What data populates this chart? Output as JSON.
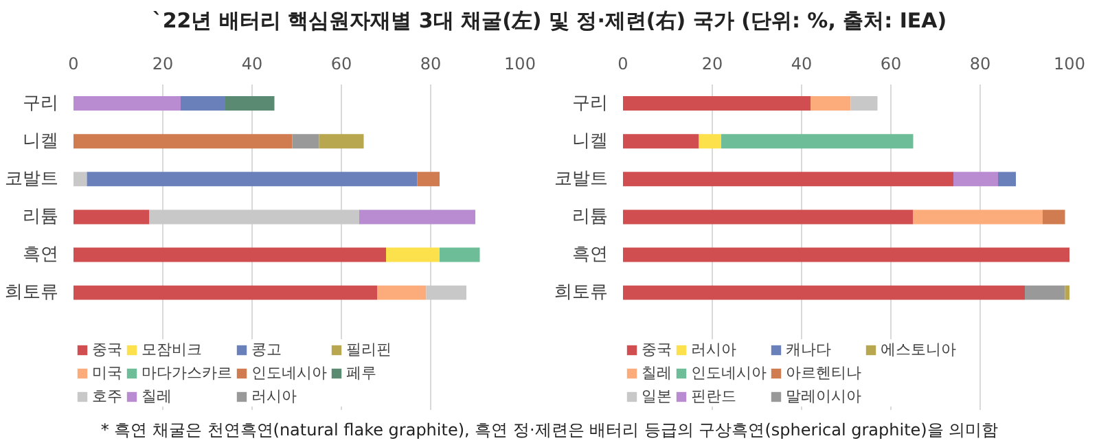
{
  "chart_data": [
    {
      "type": "bar",
      "orientation": "horizontal",
      "stacked": true,
      "title": "`22년 배터리 핵심원자재별 3대 채굴(左) 및 정·제련(右) 국가 (단위: %, 출처: IEA)",
      "categories": [
        "구리",
        "니켈",
        "코발트",
        "리튬",
        "흑연",
        "희토류"
      ],
      "xlim": [
        0,
        100
      ],
      "xticks": [
        0,
        20,
        40,
        60,
        80,
        100
      ],
      "grid": "x",
      "legend": "bottom",
      "series": [
        {
          "name": "중국",
          "color": "#d04e4f",
          "values": [
            null,
            null,
            null,
            17,
            70,
            68
          ]
        },
        {
          "name": "미국",
          "color": "#fcab7a",
          "values": [
            null,
            null,
            null,
            null,
            null,
            11
          ]
        },
        {
          "name": "호주",
          "color": "#c8c8c8",
          "values": [
            null,
            null,
            3,
            47,
            null,
            9
          ]
        },
        {
          "name": "모잠비크",
          "color": "#fce14c",
          "values": [
            null,
            null,
            null,
            null,
            12,
            null
          ]
        },
        {
          "name": "마다가스카르",
          "color": "#6cbd98",
          "values": [
            null,
            null,
            null,
            null,
            9,
            null
          ]
        },
        {
          "name": "칠레",
          "color": "#b98bd0",
          "values": [
            24,
            null,
            null,
            26,
            null,
            null
          ]
        },
        {
          "name": "콩고",
          "color": "#6a80bb",
          "values": [
            10,
            null,
            74,
            null,
            null,
            null
          ]
        },
        {
          "name": "인도네시아",
          "color": "#d07c50",
          "values": [
            null,
            49,
            5,
            null,
            null,
            null
          ]
        },
        {
          "name": "러시아",
          "color": "#999999",
          "values": [
            null,
            6,
            null,
            null,
            null,
            null
          ]
        },
        {
          "name": "필리핀",
          "color": "#b8a74e",
          "values": [
            null,
            10,
            null,
            null,
            null,
            null
          ]
        },
        {
          "name": "페루",
          "color": "#5a8a72",
          "values": [
            11,
            null,
            null,
            null,
            null,
            null
          ]
        }
      ]
    },
    {
      "type": "bar",
      "orientation": "horizontal",
      "stacked": true,
      "categories": [
        "구리",
        "니켈",
        "코발트",
        "리튬",
        "흑연",
        "희토류"
      ],
      "xlim": [
        0,
        100
      ],
      "xticks": [
        0,
        20,
        40,
        60,
        80,
        100
      ],
      "grid": "x",
      "legend": "bottom",
      "annotations": [
        "* 흑연 채굴은 천연흑연(natural flake graphite), 흑연 정·제련은 배터리 등급의 구상흑연(spherical graphite)을 의미함"
      ],
      "series": [
        {
          "name": "중국",
          "color": "#d04e4f",
          "values": [
            42,
            17,
            74,
            65,
            100,
            90
          ]
        },
        {
          "name": "칠레",
          "color": "#fcab7a",
          "values": [
            9,
            null,
            null,
            29,
            null,
            null
          ]
        },
        {
          "name": "일본",
          "color": "#c8c8c8",
          "values": [
            6,
            null,
            null,
            null,
            null,
            null
          ]
        },
        {
          "name": "러시아",
          "color": "#fce14c",
          "values": [
            null,
            5,
            null,
            null,
            null,
            null
          ]
        },
        {
          "name": "인도네시아",
          "color": "#6cbd98",
          "values": [
            null,
            43,
            null,
            null,
            null,
            null
          ]
        },
        {
          "name": "핀란드",
          "color": "#b98bd0",
          "values": [
            null,
            null,
            10,
            null,
            null,
            null
          ]
        },
        {
          "name": "캐나다",
          "color": "#6a80bb",
          "values": [
            null,
            null,
            4,
            null,
            null,
            null
          ]
        },
        {
          "name": "아르헨티나",
          "color": "#d07c50",
          "values": [
            null,
            null,
            null,
            5,
            null,
            null
          ]
        },
        {
          "name": "말레이시아",
          "color": "#999999",
          "values": [
            null,
            null,
            null,
            null,
            null,
            9
          ]
        },
        {
          "name": "에스토니아",
          "color": "#b8a74e",
          "values": [
            null,
            null,
            null,
            null,
            null,
            1
          ]
        }
      ]
    }
  ]
}
